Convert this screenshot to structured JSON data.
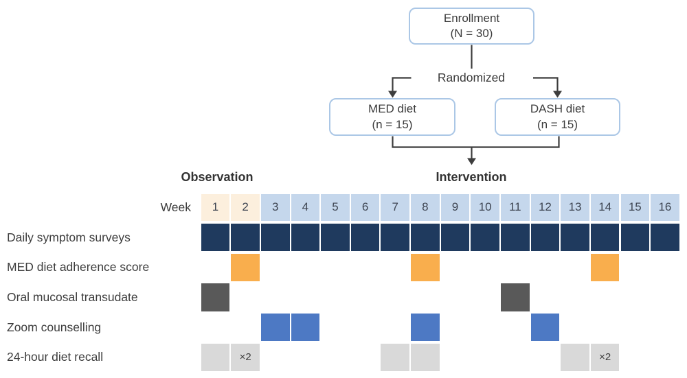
{
  "colors": {
    "flowchart_box_border": "#abc7e6",
    "connector": "#3d3d3d",
    "observation_header_bg": "#fcefdd",
    "intervention_header_bg": "#c5d7ec",
    "daily_surveys": "#1f3a5e",
    "med_adherence": "#f9ae4d",
    "oral_transudate": "#595959",
    "zoom_counselling": "#4d79c4",
    "diet_recall": "#d9d9d9"
  },
  "flowchart": {
    "enrollment": {
      "title": "Enrollment",
      "subtitle": "(N = 30)"
    },
    "randomized_label": "Randomized",
    "med_arm": {
      "title": "MED diet",
      "subtitle": "(n = 15)"
    },
    "dash_arm": {
      "title": "DASH diet",
      "subtitle": "(n = 15)"
    }
  },
  "schedule": {
    "week_axis_label": "Week",
    "phases": [
      {
        "label": "Observation",
        "week_start": 1,
        "week_end": 2
      },
      {
        "label": "Intervention",
        "week_start": 3,
        "week_end": 16
      }
    ],
    "observation_week_count": 2,
    "weeks": [
      1,
      2,
      3,
      4,
      5,
      6,
      7,
      8,
      9,
      10,
      11,
      12,
      13,
      14,
      15,
      16
    ],
    "rows": [
      {
        "label": "Daily symptom surveys",
        "color_key": "daily_surveys",
        "weeks": [
          1,
          2,
          3,
          4,
          5,
          6,
          7,
          8,
          9,
          10,
          11,
          12,
          13,
          14,
          15,
          16
        ],
        "annotations": {}
      },
      {
        "label": "MED diet adherence score",
        "color_key": "med_adherence",
        "weeks": [
          2,
          8,
          14
        ],
        "annotations": {}
      },
      {
        "label": "Oral mucosal transudate",
        "color_key": "oral_transudate",
        "weeks": [
          1,
          11
        ],
        "annotations": {}
      },
      {
        "label": "Zoom counselling",
        "color_key": "zoom_counselling",
        "weeks": [
          3,
          4,
          8,
          12
        ],
        "annotations": {}
      },
      {
        "label": "24-hour diet recall",
        "color_key": "diet_recall",
        "weeks": [
          1,
          2,
          7,
          8,
          13,
          14
        ],
        "annotations": {
          "2": "×2",
          "14": "×2"
        }
      }
    ]
  }
}
